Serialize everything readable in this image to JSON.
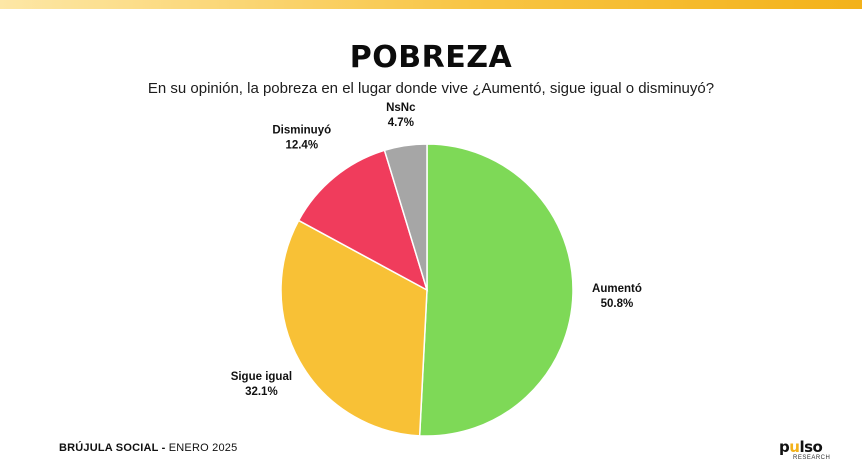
{
  "header": {
    "title": "POBREZA",
    "question": "En su opinión, la pobreza en el lugar donde vive ¿Aumentó, sigue igual o disminuyó?"
  },
  "chart_data": {
    "type": "pie",
    "title": "POBREZA",
    "subtitle": "En su opinión, la pobreza en el lugar donde vive ¿Aumentó, sigue igual o disminuyó?",
    "slices": [
      {
        "label": "Aumentó",
        "value": 50.8,
        "value_label": "50.8%",
        "color": "#7ed957"
      },
      {
        "label": "Sigue igual",
        "value": 32.1,
        "value_label": "32.1%",
        "color": "#f8c136"
      },
      {
        "label": "Disminuyó",
        "value": 12.4,
        "value_label": "12.4%",
        "color": "#f03c5c"
      },
      {
        "label": "NsNc",
        "value": 4.7,
        "value_label": "4.7%",
        "color": "#a6a6a6"
      }
    ],
    "start": "12 o'clock",
    "direction": "clockwise"
  },
  "footer": {
    "brand": "BRÚJULA SOCIAL -",
    "date": "ENERO 2025"
  },
  "logo": {
    "word_start": "p",
    "word_mark": "u",
    "word_end": "lso",
    "sub": "RESEARCH",
    "accent_color": "#f3b21a"
  }
}
